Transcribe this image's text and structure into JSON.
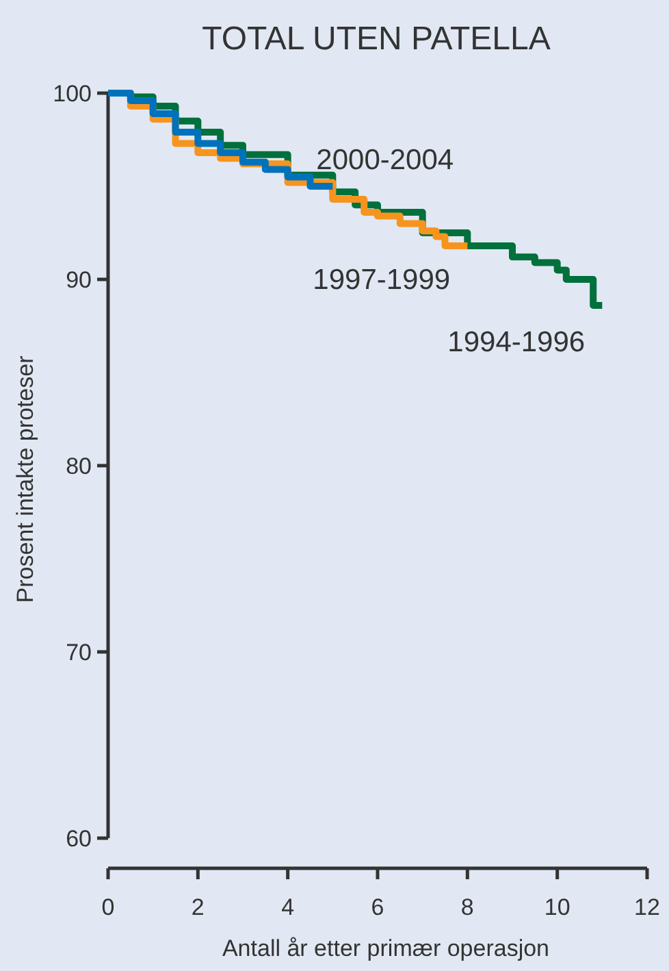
{
  "chart_data": {
    "type": "step",
    "title": "TOTAL UTEN PATELLA",
    "xlabel": "Antall år etter primær operasjon",
    "ylabel": "Prosent intakte proteser",
    "xlim": [
      0,
      12
    ],
    "xticks": [
      0,
      2,
      4,
      6,
      8,
      10,
      12
    ],
    "ylim": [
      60,
      100
    ],
    "yticks": [
      60,
      70,
      80,
      90,
      100
    ],
    "line_style": "solid",
    "marker": "none",
    "series": [
      {
        "name": "2000-2004",
        "color": "#0072bc",
        "x": [
          0,
          0.5,
          1,
          1.5,
          2,
          2.5,
          3,
          3.5,
          4,
          4.5,
          5
        ],
        "values": [
          100,
          99.6,
          98.9,
          97.9,
          97.3,
          96.8,
          96.3,
          95.9,
          95.5,
          95.0,
          95.0
        ]
      },
      {
        "name": "1997-1999",
        "color": "#f7941d",
        "x": [
          0,
          0.5,
          1,
          1.5,
          2,
          2.5,
          3,
          4,
          5,
          5.7,
          6,
          6.5,
          7,
          7.3,
          7.5,
          8
        ],
        "values": [
          100,
          99.3,
          98.6,
          97.3,
          96.8,
          96.5,
          96.2,
          95.2,
          94.3,
          93.6,
          93.4,
          93.0,
          92.6,
          92.3,
          91.8,
          91.8
        ]
      },
      {
        "name": "1994-1996",
        "color": "#00703c",
        "x": [
          0,
          0.5,
          1,
          1.5,
          2,
          2.5,
          3,
          4,
          5,
          5.5,
          6,
          7,
          8,
          9,
          9.5,
          10,
          10.2,
          10.8,
          11
        ],
        "values": [
          100,
          99.8,
          99.3,
          98.5,
          97.9,
          97.2,
          96.7,
          95.6,
          94.7,
          94.0,
          93.6,
          92.5,
          91.8,
          91.2,
          90.9,
          90.5,
          90.0,
          88.6,
          88.6
        ]
      }
    ]
  }
}
